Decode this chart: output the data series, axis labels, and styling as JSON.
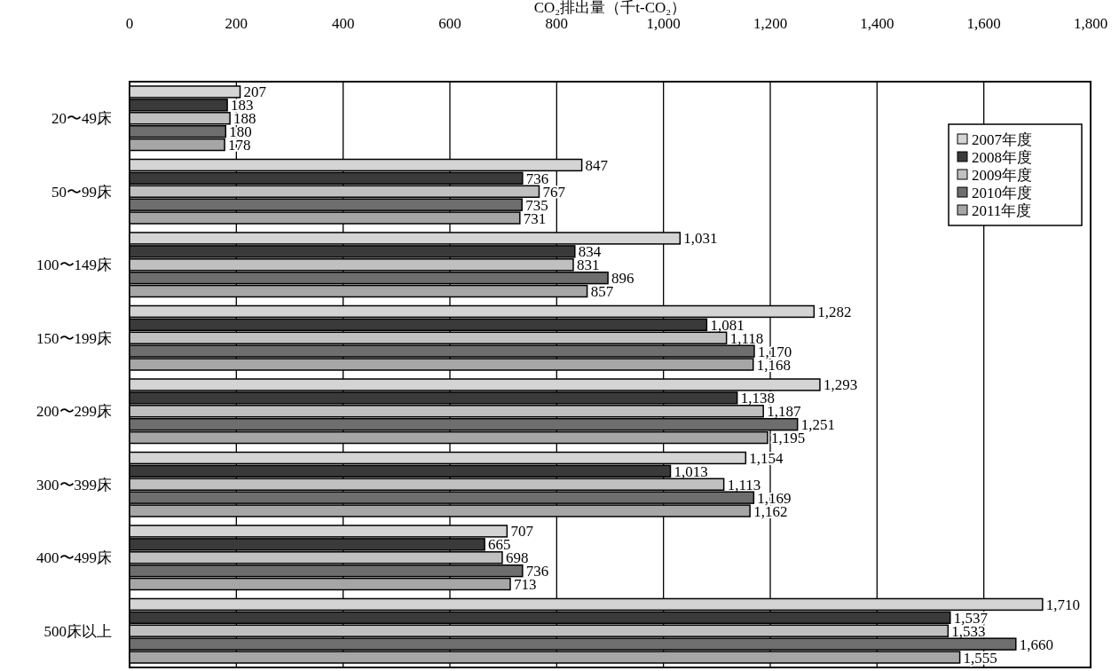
{
  "chart_data": {
    "type": "bar",
    "orientation": "horizontal",
    "xlabel": "CO₂排出量（千t-CO₂）",
    "categories": [
      "20〜49床",
      "50〜99床",
      "100〜149床",
      "150〜199床",
      "200〜299床",
      "300〜399床",
      "400〜499床",
      "500床以上"
    ],
    "xlim": [
      0,
      1800
    ],
    "xticks": [
      0,
      200,
      400,
      600,
      800,
      {
        "value": 1000,
        "label": "1,000"
      },
      {
        "value": 1200,
        "label": "1,200"
      },
      {
        "value": 1400,
        "label": "1,400"
      },
      {
        "value": 1600,
        "label": "1,600"
      },
      {
        "value": 1800,
        "label": "1,800"
      }
    ],
    "grid": "x",
    "legend": "top right",
    "series": [
      {
        "name": "2007年度",
        "color": "#d4d4d4",
        "values": [
          207,
          847,
          1031,
          1282,
          1293,
          1154,
          707,
          1710
        ],
        "value_labels": [
          "207",
          "847",
          "1,031",
          "1,282",
          "1,293",
          "1,154",
          "707",
          "1,710"
        ]
      },
      {
        "name": "2008年度",
        "color": "#3a3a3a",
        "values": [
          183,
          736,
          834,
          1081,
          1138,
          1013,
          665,
          1537
        ],
        "value_labels": [
          "183",
          "736",
          "834",
          "1,081",
          "1,138",
          "1,013",
          "665",
          "1,537"
        ]
      },
      {
        "name": "2009年度",
        "color": "#c0c0c0",
        "values": [
          188,
          767,
          831,
          1118,
          1187,
          1113,
          698,
          1533
        ],
        "value_labels": [
          "188",
          "767",
          "831",
          "1,118",
          "1,187",
          "1,113",
          "698",
          "1,533"
        ]
      },
      {
        "name": "2010年度",
        "color": "#6e6e6e",
        "values": [
          180,
          735,
          896,
          1170,
          1251,
          1169,
          736,
          1660
        ],
        "value_labels": [
          "180",
          "735",
          "896",
          "1,170",
          "1,251",
          "1,169",
          "736",
          "1,660"
        ]
      },
      {
        "name": "2011年度",
        "color": "#a6a6a6",
        "values": [
          178,
          731,
          857,
          1168,
          1195,
          1162,
          713,
          1555
        ],
        "value_labels": [
          "178",
          "731",
          "857",
          "1,168",
          "1,195",
          "1,162",
          "713",
          "1,555"
        ]
      }
    ]
  }
}
